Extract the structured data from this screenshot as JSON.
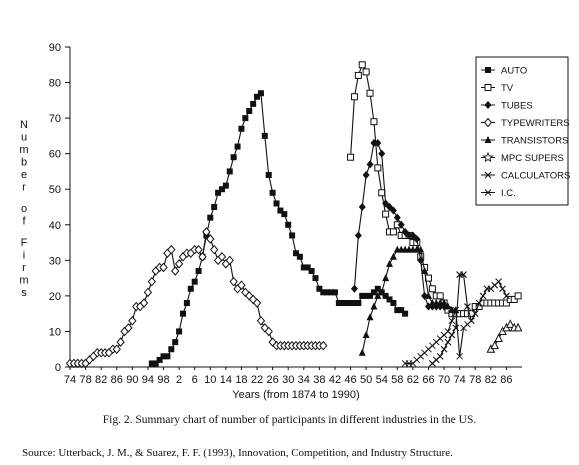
{
  "caption": "Fig. 2. Summary chart of number of participants in different industries in the US.",
  "source": "Source: Utterback, J. M., & Suarez, F. F. (1993), Innovation, Competition, and Industry Structure.",
  "chart_data": {
    "type": "line",
    "title": "",
    "xlabel": "Years (from 1874 to 1990)",
    "ylabel": "Number of Firms",
    "xlim": [
      1874,
      1990
    ],
    "ylim": [
      0,
      90
    ],
    "y_ticks": [
      0,
      10,
      20,
      30,
      40,
      50,
      60,
      70,
      80,
      90
    ],
    "x_tick_years": [
      1874,
      1878,
      1882,
      1886,
      1890,
      1894,
      1898,
      1902,
      1906,
      1910,
      1914,
      1918,
      1922,
      1926,
      1930,
      1934,
      1938,
      1942,
      1946,
      1950,
      1954,
      1958,
      1962,
      1966,
      1970,
      1974,
      1978,
      1982,
      1986
    ],
    "x_tick_labels": [
      "74",
      "78",
      "82",
      "86",
      "90",
      "94",
      "98",
      "2",
      "6",
      "10",
      "14",
      "18",
      "22",
      "26",
      "30",
      "34",
      "38",
      "42",
      "46",
      "50",
      "54",
      "58",
      "62",
      "66",
      "70",
      "74",
      "78",
      "82",
      "86"
    ],
    "grid": false,
    "legend_position": "right",
    "series": [
      {
        "name": "AUTO",
        "marker": "square-filled",
        "x": [
          1895,
          1896,
          1897,
          1898,
          1899,
          1900,
          1901,
          1902,
          1903,
          1904,
          1905,
          1906,
          1907,
          1908,
          1909,
          1910,
          1911,
          1912,
          1913,
          1914,
          1915,
          1916,
          1917,
          1918,
          1919,
          1920,
          1921,
          1922,
          1923,
          1924,
          1925,
          1926,
          1927,
          1928,
          1929,
          1930,
          1931,
          1932,
          1933,
          1934,
          1935,
          1936,
          1937,
          1938,
          1939,
          1940,
          1941,
          1942,
          1943,
          1944,
          1945,
          1946,
          1947,
          1948,
          1949,
          1950,
          1951,
          1952,
          1953,
          1954,
          1955,
          1956,
          1957,
          1958,
          1959,
          1960
        ],
        "y": [
          1,
          1,
          2,
          3,
          3,
          5,
          7,
          10,
          15,
          18,
          22,
          24,
          27,
          31,
          37,
          42,
          45,
          49,
          50,
          51,
          55,
          59,
          62,
          67,
          70,
          72,
          74,
          76,
          77,
          65,
          54,
          49,
          46,
          44,
          43,
          40,
          37,
          32,
          31,
          28,
          28,
          27,
          25,
          22,
          21,
          21,
          21,
          21,
          18,
          18,
          18,
          18,
          18,
          18,
          20,
          20,
          20,
          21,
          22,
          21,
          20,
          19,
          18,
          16,
          16,
          15
        ]
      },
      {
        "name": "TV",
        "marker": "square-open",
        "x": [
          1946,
          1947,
          1948,
          1949,
          1950,
          1951,
          1952,
          1953,
          1954,
          1955,
          1956,
          1957,
          1958,
          1959,
          1960,
          1961,
          1962,
          1963,
          1964,
          1965,
          1966,
          1967,
          1968,
          1969,
          1970,
          1971,
          1972,
          1973,
          1974,
          1975,
          1976,
          1977,
          1978,
          1979,
          1980,
          1981,
          1982,
          1983,
          1984,
          1985,
          1986,
          1987,
          1988,
          1989
        ],
        "y": [
          59,
          76,
          82,
          85,
          83,
          77,
          69,
          56,
          49,
          43,
          38,
          38,
          40,
          37,
          37,
          37,
          35,
          35,
          31,
          28,
          25,
          22,
          20,
          20,
          18,
          16,
          15,
          15,
          15,
          15,
          15,
          15,
          17,
          17,
          18,
          18,
          18,
          18,
          18,
          18,
          18,
          19,
          19,
          20
        ]
      },
      {
        "name": "TUBES",
        "marker": "diamond-filled",
        "x": [
          1947,
          1948,
          1949,
          1950,
          1951,
          1952,
          1953,
          1954,
          1955,
          1956,
          1957,
          1958,
          1959,
          1960,
          1961,
          1962,
          1963,
          1964,
          1965,
          1966,
          1967,
          1968,
          1969,
          1970
        ],
        "y": [
          22,
          37,
          45,
          54,
          57,
          63,
          63,
          60,
          46,
          45,
          44,
          42,
          40,
          38,
          37,
          37,
          36,
          30,
          20,
          17,
          17,
          17,
          17,
          17
        ]
      },
      {
        "name": "TYPEWRITERS",
        "marker": "diamond-open",
        "x": [
          1874,
          1875,
          1876,
          1877,
          1878,
          1879,
          1880,
          1881,
          1882,
          1883,
          1884,
          1885,
          1886,
          1887,
          1888,
          1889,
          1890,
          1891,
          1892,
          1893,
          1894,
          1895,
          1896,
          1897,
          1898,
          1899,
          1900,
          1901,
          1902,
          1903,
          1904,
          1905,
          1906,
          1907,
          1908,
          1909,
          1910,
          1911,
          1912,
          1913,
          1914,
          1915,
          1916,
          1917,
          1918,
          1919,
          1920,
          1921,
          1922,
          1923,
          1924,
          1925,
          1926,
          1927,
          1928,
          1929,
          1930,
          1931,
          1932,
          1933,
          1934,
          1935,
          1936,
          1937,
          1938,
          1939
        ],
        "y": [
          1,
          1,
          1,
          1,
          1,
          2,
          3,
          4,
          4,
          4,
          4,
          5,
          5,
          7,
          10,
          11,
          13,
          17,
          17,
          18,
          21,
          24,
          27,
          28,
          28,
          32,
          33,
          27,
          29,
          31,
          32,
          32,
          33,
          33,
          31,
          38,
          36,
          33,
          30,
          31,
          29,
          30,
          24,
          22,
          23,
          21,
          20,
          19,
          18,
          13,
          11,
          10,
          7,
          6,
          6,
          6,
          6,
          6,
          6,
          6,
          6,
          6,
          6,
          6,
          6,
          6
        ]
      },
      {
        "name": "TRANSISTORS",
        "marker": "triangle-filled",
        "x": [
          1949,
          1950,
          1951,
          1952,
          1953,
          1954,
          1955,
          1956,
          1957,
          1958,
          1959,
          1960,
          1961,
          1962,
          1963,
          1964,
          1965,
          1966,
          1967,
          1968,
          1969,
          1970,
          1971,
          1972,
          1973
        ],
        "y": [
          4,
          9,
          14,
          17,
          20,
          21,
          25,
          29,
          31,
          33,
          33,
          33,
          33,
          33,
          33,
          33,
          27,
          20,
          18,
          18,
          18,
          18,
          17,
          16,
          16
        ]
      },
      {
        "name": "MPC SUPERS",
        "marker": "star-open",
        "x": [],
        "y": []
      },
      {
        "name": "CALCULATORS",
        "marker": "x-cross",
        "x": [
          1967,
          1968,
          1969,
          1970,
          1971,
          1972,
          1973,
          1974,
          1975,
          1976,
          1977,
          1978,
          1979,
          1980,
          1981,
          1982,
          1983,
          1984,
          1985,
          1986
        ],
        "y": [
          1,
          2,
          3,
          5,
          7,
          9,
          11,
          26,
          26,
          17,
          13,
          15,
          18,
          20,
          22,
          22,
          23,
          24,
          22,
          20
        ]
      },
      {
        "name": "I.C.",
        "marker": "x-diag",
        "x": [
          1960,
          1961,
          1962,
          1963,
          1964,
          1965,
          1966,
          1967,
          1968,
          1969,
          1970,
          1971,
          1972,
          1973,
          1974,
          1975,
          1976
        ],
        "y": [
          1,
          1,
          1,
          2,
          3,
          4,
          5,
          6,
          7,
          8,
          9,
          10,
          13,
          16,
          3,
          11,
          12
        ]
      },
      {
        "name": "",
        "marker": "triangle-open-right",
        "x": [
          1982,
          1983,
          1984,
          1985,
          1986,
          1987,
          1988,
          1989
        ],
        "y": [
          5,
          6,
          8,
          10,
          11,
          12,
          11,
          11
        ]
      }
    ]
  }
}
